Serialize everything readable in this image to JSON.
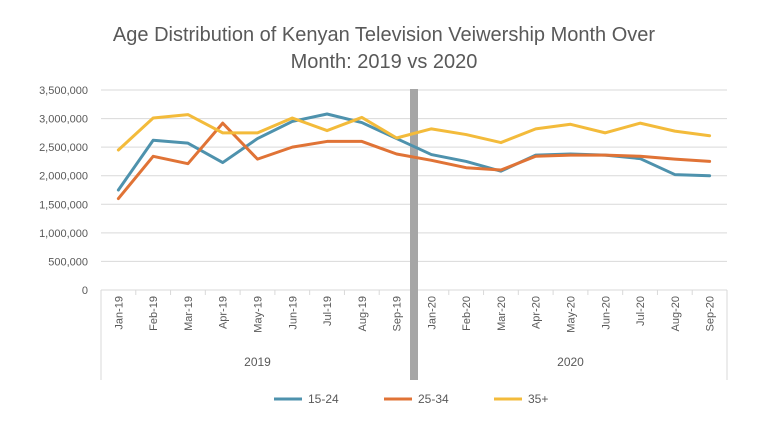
{
  "chart_data": {
    "type": "line",
    "title": "Age Distribution of Kenyan Television Veiwership Month Over Month: 2019 vs 2020",
    "title_lines": [
      "Age Distribution of Kenyan Television Veiwership Month Over",
      "Month: 2019 vs 2020"
    ],
    "categories": [
      "Jan-19",
      "Feb-19",
      "Mar-19",
      "Apr-19",
      "May-19",
      "Jun-19",
      "Jul-19",
      "Aug-19",
      "Sep-19",
      "Jan-20",
      "Feb-20",
      "Mar-20",
      "Apr-20",
      "May-20",
      "Jun-20",
      "Jul-20",
      "Aug-20",
      "Sep-20"
    ],
    "groups": [
      {
        "label": "2019",
        "start": 0,
        "end": 8
      },
      {
        "label": "2020",
        "start": 9,
        "end": 17
      }
    ],
    "y_ticks": [
      "0",
      "500,000",
      "1,000,000",
      "1,500,000",
      "2,000,000",
      "2,500,000",
      "3,000,000",
      "3,500,000"
    ],
    "ylim": [
      0,
      3500000
    ],
    "grid": true,
    "legend_position": "bottom",
    "divider_color": "#a6a6a6",
    "series": [
      {
        "name": "15-24",
        "color": "#4e92ad",
        "values": [
          1750000,
          2620000,
          2570000,
          2230000,
          2650000,
          2950000,
          3080000,
          2930000,
          2650000,
          2370000,
          2250000,
          2080000,
          2360000,
          2380000,
          2360000,
          2300000,
          2020000,
          2000000
        ]
      },
      {
        "name": "25-34",
        "color": "#e07336",
        "values": [
          1600000,
          2340000,
          2210000,
          2920000,
          2290000,
          2500000,
          2600000,
          2600000,
          2380000,
          2270000,
          2140000,
          2100000,
          2340000,
          2360000,
          2360000,
          2340000,
          2290000,
          2250000
        ]
      },
      {
        "name": "35+",
        "color": "#f3bb3b",
        "values": [
          2450000,
          3010000,
          3070000,
          2750000,
          2750000,
          3010000,
          2790000,
          3020000,
          2660000,
          2820000,
          2720000,
          2580000,
          2820000,
          2900000,
          2750000,
          2920000,
          2780000,
          2700000
        ]
      }
    ]
  }
}
